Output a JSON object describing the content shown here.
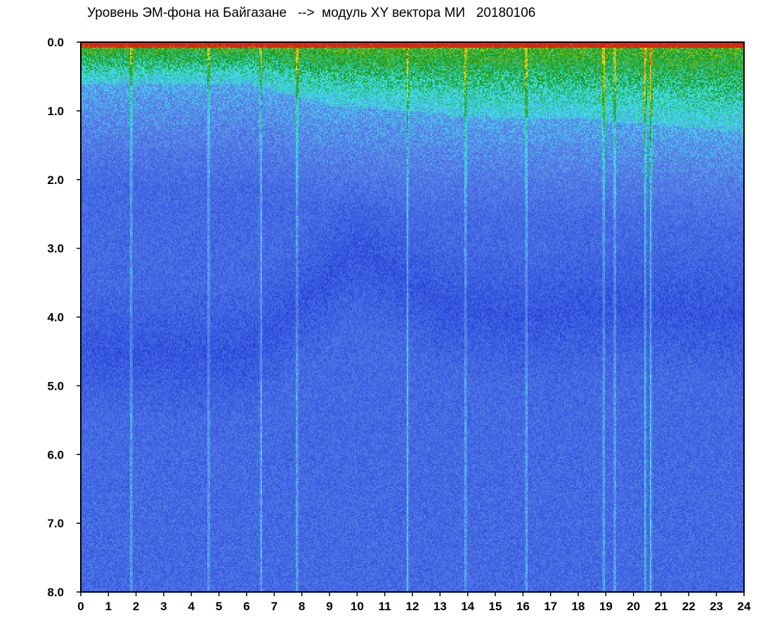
{
  "chart_data": {
    "type": "heatmap",
    "title": "Уровень ЭМ-фона на Байгазане   -->  модуль XY вектора МИ   20180106",
    "xlabel": "",
    "ylabel": "",
    "x_ticks": [
      "0",
      "1",
      "2",
      "3",
      "4",
      "5",
      "6",
      "7",
      "8",
      "9",
      "10",
      "11",
      "12",
      "13",
      "14",
      "15",
      "16",
      "17",
      "18",
      "19",
      "20",
      "21",
      "22",
      "23",
      "24"
    ],
    "y_ticks": [
      "0.0",
      "1.0",
      "2.0",
      "3.0",
      "4.0",
      "5.0",
      "6.0",
      "7.0",
      "8.0"
    ],
    "xlim": [
      0,
      24
    ],
    "ylim": [
      0,
      8
    ],
    "y_inverted": true,
    "grid": false,
    "colorscale": [
      "#1a2ed0",
      "#3a5ee0",
      "#5a82e8",
      "#40e0e8",
      "#1a9a1a",
      "#e8e020",
      "#e02010"
    ],
    "features": {
      "vertical_streaks_hours": [
        1.8,
        4.6,
        6.5,
        7.8,
        11.8,
        13.9,
        16.1,
        18.9,
        19.3,
        20.4,
        20.6
      ],
      "high_level_band_depth": [
        [
          0,
          0.6
        ],
        [
          3,
          0.6
        ],
        [
          6,
          0.6
        ],
        [
          9,
          0.9
        ],
        [
          12,
          1.0
        ],
        [
          15,
          1.1
        ],
        [
          18,
          1.1
        ],
        [
          21,
          1.2
        ],
        [
          24,
          1.3
        ]
      ],
      "dark_band_depth": [
        [
          0,
          4.5
        ],
        [
          6,
          4.5
        ],
        [
          10,
          3.0
        ],
        [
          13,
          3.8
        ],
        [
          16,
          4.0
        ],
        [
          20,
          3.8
        ],
        [
          24,
          4.0
        ]
      ]
    }
  }
}
